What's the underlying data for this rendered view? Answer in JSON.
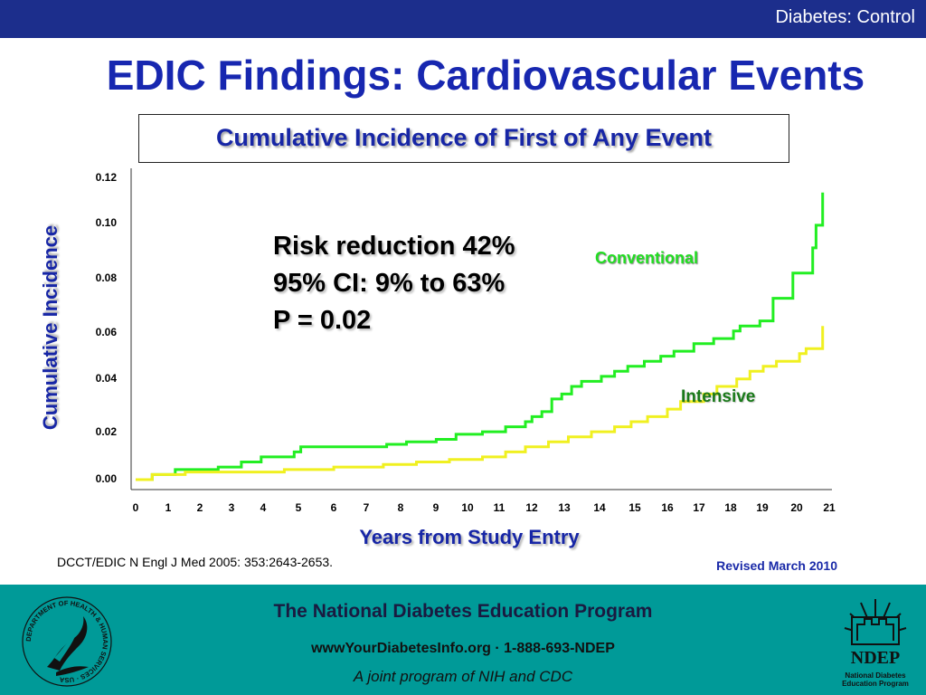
{
  "header": {
    "section_label": "Diabetes: Control"
  },
  "slide": {
    "title": "EDIC Findings: Cardiovascular Events",
    "stats": [
      "Risk reduction 42%",
      "95% CI: 9% to 63%",
      "P = 0.02"
    ],
    "citation": "DCCT/EDIC N Engl J Med 2005: 353:2643-2653.",
    "revised": "Revised March 2010"
  },
  "chart_data": {
    "type": "line",
    "title": "Cumulative Incidence of First of Any Event",
    "xlabel": "Years from Study Entry",
    "ylabel": "Cumulative Incidence",
    "x_ticks": [
      "0",
      "1",
      "2",
      "3",
      "4",
      "5",
      "6",
      "7",
      "8",
      "9",
      "10",
      "11",
      "12",
      "13",
      "14",
      "15",
      "16",
      "17",
      "18",
      "19",
      "20",
      "21"
    ],
    "y_ticks": [
      "0.00",
      "0.02",
      "0.04",
      "0.06",
      "0.08",
      "0.10",
      "0.12"
    ],
    "xlim": [
      0,
      21
    ],
    "ylim": [
      0,
      0.12
    ],
    "series": [
      {
        "name": "Conventional",
        "color": "#22ee22",
        "steps": [
          [
            0,
            0
          ],
          [
            0.5,
            0.002
          ],
          [
            1.2,
            0.004
          ],
          [
            2.5,
            0.005
          ],
          [
            3.2,
            0.007
          ],
          [
            3.8,
            0.009
          ],
          [
            4.8,
            0.011
          ],
          [
            5,
            0.013
          ],
          [
            7.6,
            0.014
          ],
          [
            8.2,
            0.015
          ],
          [
            9.1,
            0.016
          ],
          [
            9.7,
            0.018
          ],
          [
            10.5,
            0.019
          ],
          [
            11.2,
            0.021
          ],
          [
            11.8,
            0.023
          ],
          [
            12,
            0.025
          ],
          [
            12.3,
            0.027
          ],
          [
            12.6,
            0.032
          ],
          [
            12.9,
            0.034
          ],
          [
            13.2,
            0.037
          ],
          [
            13.5,
            0.039
          ],
          [
            14.1,
            0.041
          ],
          [
            14.5,
            0.043
          ],
          [
            14.9,
            0.045
          ],
          [
            15.4,
            0.047
          ],
          [
            15.9,
            0.049
          ],
          [
            16.3,
            0.051
          ],
          [
            16.9,
            0.054
          ],
          [
            17.5,
            0.056
          ],
          [
            18.1,
            0.059
          ],
          [
            18.3,
            0.061
          ],
          [
            18.9,
            0.063
          ],
          [
            19.3,
            0.072
          ],
          [
            19.9,
            0.082
          ],
          [
            20.5,
            0.092
          ],
          [
            20.6,
            0.095
          ],
          [
            20.6,
            0.101
          ],
          [
            20.8,
            0.108
          ],
          [
            20.8,
            0.114
          ]
        ],
        "end_x": 20.8
      },
      {
        "name": "Intensive",
        "color": "#f0f020",
        "steps": [
          [
            0,
            0
          ],
          [
            0.5,
            0.002
          ],
          [
            1.5,
            0.003
          ],
          [
            4.5,
            0.004
          ],
          [
            6,
            0.005
          ],
          [
            7.5,
            0.006
          ],
          [
            8.5,
            0.007
          ],
          [
            9.5,
            0.008
          ],
          [
            10.5,
            0.009
          ],
          [
            11.2,
            0.011
          ],
          [
            11.8,
            0.013
          ],
          [
            12.5,
            0.015
          ],
          [
            13.1,
            0.017
          ],
          [
            13.8,
            0.019
          ],
          [
            14.5,
            0.021
          ],
          [
            15,
            0.023
          ],
          [
            15.5,
            0.025
          ],
          [
            16.1,
            0.028
          ],
          [
            16.5,
            0.031
          ],
          [
            17.2,
            0.034
          ],
          [
            17.6,
            0.037
          ],
          [
            18.2,
            0.04
          ],
          [
            18.6,
            0.043
          ],
          [
            19,
            0.045
          ],
          [
            19.4,
            0.047
          ],
          [
            20.1,
            0.05
          ],
          [
            20.3,
            0.052
          ],
          [
            20.8,
            0.055
          ],
          [
            20.8,
            0.061
          ]
        ],
        "end_x": 20.8
      }
    ]
  },
  "footer": {
    "title": "The National Diabetes Education Program",
    "url_line": "wwwYourDiabetesInfo.org · 1-888-693-NDEP",
    "joint": "A joint program of NIH and CDC",
    "hhs_seal_text": "DEPARTMENT OF HEALTH & HUMAN SERVICES · USA",
    "ndep_logo_text": "NDEP",
    "ndep_logo_sub": [
      "National Diabetes",
      "Education Program"
    ]
  },
  "colors": {
    "topbar": "#1c2e8c",
    "title": "#1727b0",
    "footer": "#009a98"
  }
}
